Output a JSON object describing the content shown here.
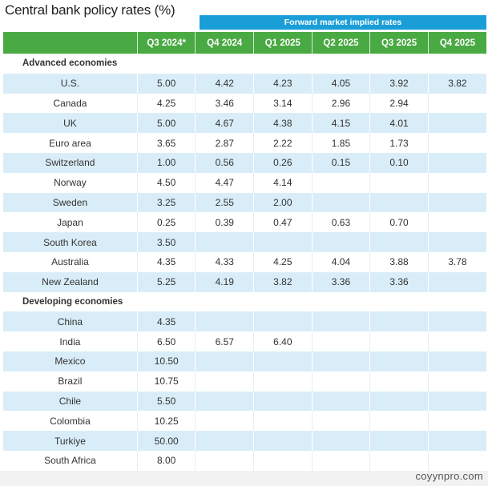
{
  "title": "Central bank policy rates (%)",
  "forward_header": "Forward market implied rates",
  "columns": [
    "",
    "Q3 2024*",
    "Q4 2024",
    "Q1 2025",
    "Q2 2025",
    "Q3 2025",
    "Q4 2025"
  ],
  "sections": [
    {
      "label": "Advanced economies",
      "rows": [
        [
          "U.S.",
          "5.00",
          "4.42",
          "4.23",
          "4.05",
          "3.92",
          "3.82"
        ],
        [
          "Canada",
          "4.25",
          "3.46",
          "3.14",
          "2.96",
          "2.94",
          ""
        ],
        [
          "UK",
          "5.00",
          "4.67",
          "4.38",
          "4.15",
          "4.01",
          ""
        ],
        [
          "Euro area",
          "3.65",
          "2.87",
          "2.22",
          "1.85",
          "1.73",
          ""
        ],
        [
          "Switzerland",
          "1.00",
          "0.56",
          "0.26",
          "0.15",
          "0.10",
          ""
        ],
        [
          "Norway",
          "4.50",
          "4.47",
          "4.14",
          "",
          "",
          ""
        ],
        [
          "Sweden",
          "3.25",
          "2.55",
          "2.00",
          "",
          "",
          ""
        ],
        [
          "Japan",
          "0.25",
          "0.39",
          "0.47",
          "0.63",
          "0.70",
          ""
        ],
        [
          "South Korea",
          "3.50",
          "",
          "",
          "",
          "",
          ""
        ],
        [
          "Australia",
          "4.35",
          "4.33",
          "4.25",
          "4.04",
          "3.88",
          "3.78"
        ],
        [
          "New Zealand",
          "5.25",
          "4.19",
          "3.82",
          "3.36",
          "3.36",
          ""
        ]
      ]
    },
    {
      "label": "Developing economies",
      "rows": [
        [
          "China",
          "4.35",
          "",
          "",
          "",
          "",
          ""
        ],
        [
          "India",
          "6.50",
          "6.57",
          "6.40",
          "",
          "",
          ""
        ],
        [
          "Mexico",
          "10.50",
          "",
          "",
          "",
          "",
          ""
        ],
        [
          "Brazil",
          "10.75",
          "",
          "",
          "",
          "",
          ""
        ],
        [
          "Chile",
          "5.50",
          "",
          "",
          "",
          "",
          ""
        ],
        [
          "Colombia",
          "10.25",
          "",
          "",
          "",
          "",
          ""
        ],
        [
          "Turkiye",
          "50.00",
          "",
          "",
          "",
          "",
          ""
        ],
        [
          "South Africa",
          "8.00",
          "",
          "",
          "",
          "",
          ""
        ]
      ]
    }
  ],
  "watermark": "coyynpro.com"
}
